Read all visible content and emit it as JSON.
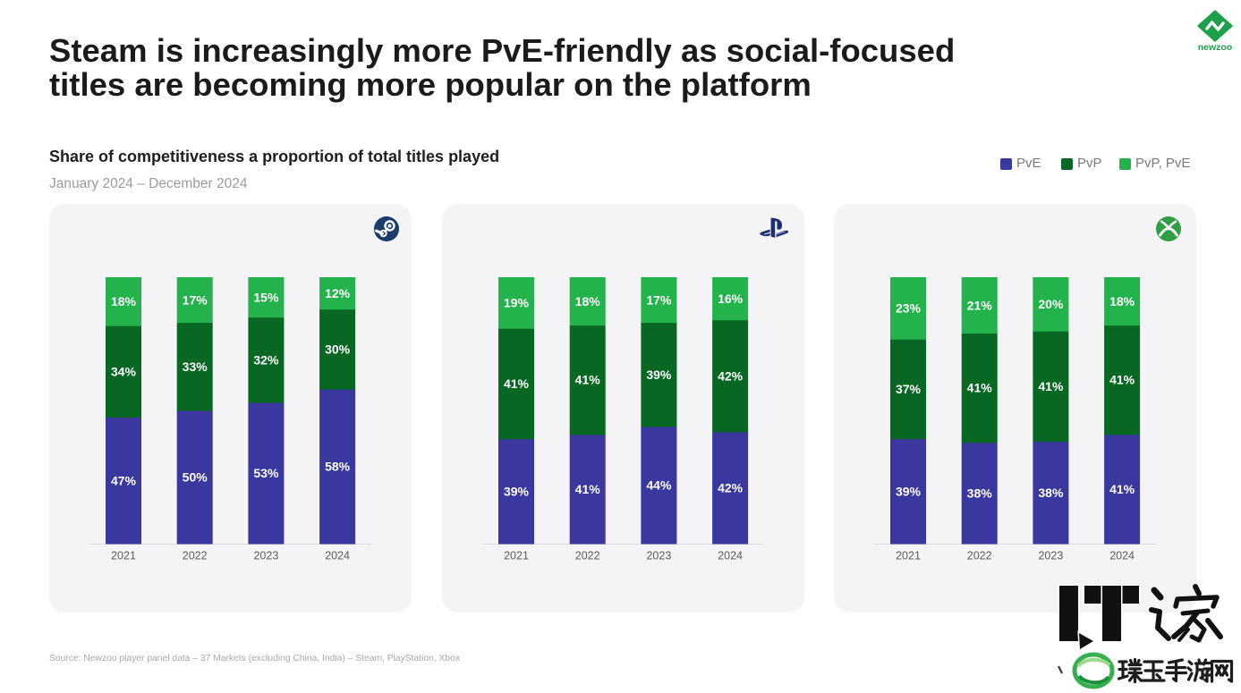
{
  "header": {
    "title_lines": [
      "Steam is increasingly more PvE-friendly as social-focused",
      "titles are becoming more popular on the platform"
    ],
    "logo": {
      "icon": "newzoo-logo",
      "text": "newzoo",
      "color": "#1e9f4a"
    }
  },
  "chart_header": {
    "heading": "Share of competitiveness a proportion of total titles played",
    "period": "January 2024 – December 2024"
  },
  "legend": {
    "position": "top-right",
    "colors": [
      "#3a389f",
      "#086722",
      "#23b24b"
    ]
  },
  "chart_data": [
    {
      "type": "bar",
      "stacked": true,
      "icon": "steam-icon",
      "categories": [
        "2021",
        "2022",
        "2023",
        "2024"
      ],
      "series": [
        {
          "name": "PvE",
          "values": [
            47,
            50,
            53,
            58
          ]
        },
        {
          "name": "PvP",
          "values": [
            34,
            33,
            32,
            30
          ]
        },
        {
          "name": "PvP, PvE",
          "values": [
            18,
            17,
            15,
            12
          ]
        }
      ],
      "value_suffix": "%",
      "ylim": [
        0,
        100
      ],
      "y_axis_visible": false,
      "grid": false
    },
    {
      "type": "bar",
      "stacked": true,
      "icon": "playstation-icon",
      "categories": [
        "2021",
        "2022",
        "2023",
        "2024"
      ],
      "series": [
        {
          "name": "PvE",
          "values": [
            39,
            41,
            44,
            42
          ]
        },
        {
          "name": "PvP",
          "values": [
            41,
            41,
            39,
            42
          ]
        },
        {
          "name": "PvP, PvE",
          "values": [
            19,
            18,
            17,
            16
          ]
        }
      ],
      "value_suffix": "%",
      "ylim": [
        0,
        100
      ],
      "y_axis_visible": false,
      "grid": false
    },
    {
      "type": "bar",
      "stacked": true,
      "icon": "xbox-icon",
      "categories": [
        "2021",
        "2022",
        "2023",
        "2024"
      ],
      "series": [
        {
          "name": "PvE",
          "values": [
            39,
            38,
            38,
            41
          ]
        },
        {
          "name": "PvP",
          "values": [
            37,
            41,
            41,
            41
          ]
        },
        {
          "name": "PvP, PvE",
          "values": [
            23,
            21,
            20,
            18
          ]
        }
      ],
      "value_suffix": "%",
      "ylim": [
        0,
        100
      ],
      "y_axis_visible": false,
      "grid": false
    }
  ],
  "footer": {
    "source": "Source: Newzoo player panel data – 37 Markets (excluding China, India) – Steam, PlayStation, Xbox"
  },
  "watermark": {
    "brand": "IT之家",
    "site": "璞玉手游网"
  }
}
